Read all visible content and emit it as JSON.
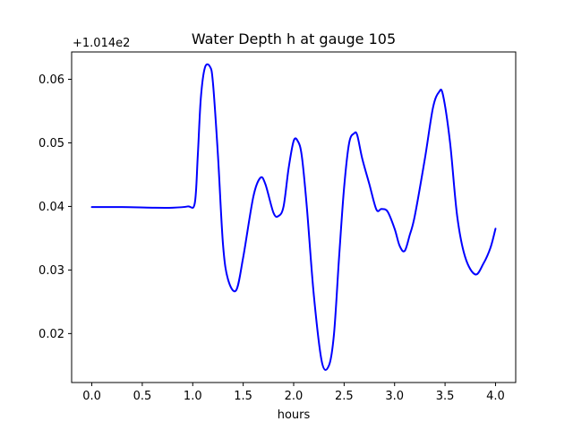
{
  "chart_data": {
    "type": "line",
    "title": "Water Depth h at gauge 105",
    "xlabel": "hours",
    "ylabel": "",
    "y_offset_label": "+1.014e2",
    "xlim": [
      -0.2,
      4.2
    ],
    "ylim": [
      0.0123,
      0.0643
    ],
    "x_ticks": [
      0.0,
      0.5,
      1.0,
      1.5,
      2.0,
      2.5,
      3.0,
      3.5,
      4.0
    ],
    "x_tick_labels": [
      "0.0",
      "0.5",
      "1.0",
      "1.5",
      "2.0",
      "2.5",
      "3.0",
      "3.5",
      "4.0"
    ],
    "y_ticks": [
      0.02,
      0.03,
      0.04,
      0.05,
      0.06
    ],
    "y_tick_labels": [
      "0.02",
      "0.03",
      "0.04",
      "0.05",
      "0.06"
    ],
    "grid": false,
    "line_color": "#0000ff",
    "series": [
      {
        "x": [
          0.0,
          0.3,
          0.6,
          0.8,
          0.95,
          1.02,
          1.05,
          1.08,
          1.12,
          1.17,
          1.2,
          1.25,
          1.3,
          1.35,
          1.43,
          1.5,
          1.6,
          1.67,
          1.72,
          1.8,
          1.85,
          1.9,
          1.95,
          2.0,
          2.04,
          2.08,
          2.13,
          2.2,
          2.28,
          2.35,
          2.4,
          2.45,
          2.5,
          2.55,
          2.6,
          2.63,
          2.68,
          2.75,
          2.82,
          2.87,
          2.93,
          3.0,
          3.05,
          3.1,
          3.15,
          3.2,
          3.3,
          3.38,
          3.44,
          3.48,
          3.55,
          3.62,
          3.7,
          3.8,
          3.88,
          3.95,
          4.0
        ],
        "y": [
          0.0399,
          0.0399,
          0.0398,
          0.0398,
          0.04,
          0.0405,
          0.048,
          0.057,
          0.0618,
          0.062,
          0.0595,
          0.048,
          0.034,
          0.0285,
          0.0268,
          0.032,
          0.0415,
          0.0445,
          0.0435,
          0.039,
          0.0385,
          0.04,
          0.046,
          0.0503,
          0.0503,
          0.048,
          0.04,
          0.026,
          0.0155,
          0.015,
          0.02,
          0.032,
          0.043,
          0.05,
          0.0515,
          0.0512,
          0.0475,
          0.0435,
          0.0395,
          0.0396,
          0.0392,
          0.0365,
          0.0338,
          0.033,
          0.0355,
          0.0385,
          0.0475,
          0.0555,
          0.058,
          0.0575,
          0.05,
          0.0385,
          0.032,
          0.0293,
          0.031,
          0.0335,
          0.0365
        ]
      }
    ]
  }
}
